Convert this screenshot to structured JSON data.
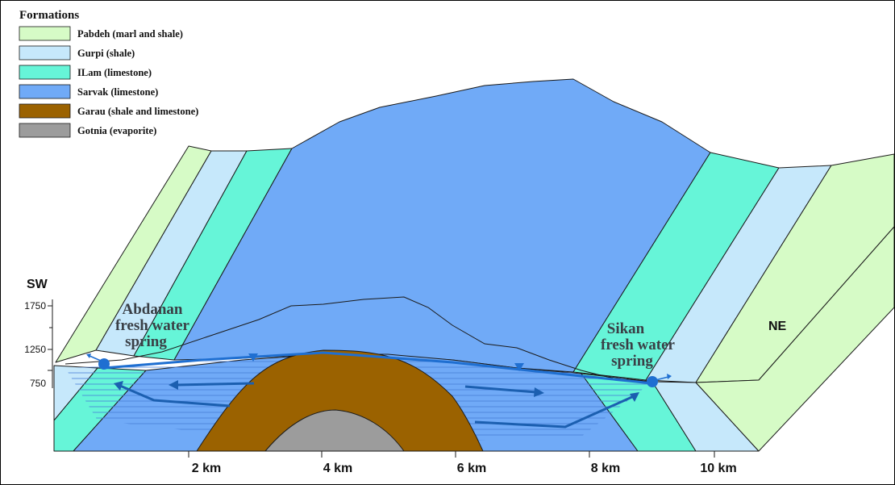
{
  "legend": {
    "title": "Formations",
    "items": [
      {
        "label": "Pabdeh (marl and shale)",
        "color": "#d6fbc6"
      },
      {
        "label": "Gurpi (shale)",
        "color": "#c6e8fb"
      },
      {
        "label": "ILam (limestone)",
        "color": "#66f5d8"
      },
      {
        "label": "Sarvak (limestone)",
        "color": "#70aaf7"
      },
      {
        "label": "Garau (shale and limestone)",
        "color": "#9b6200"
      },
      {
        "label": "Gotnia (evaporite)",
        "color": "#9c9c9c"
      }
    ]
  },
  "directions": {
    "left": "SW",
    "right": "NE"
  },
  "elevation_ticks": [
    "1750",
    "1250",
    "750"
  ],
  "distance_ticks": [
    "2 km",
    "4 km",
    "6 km",
    "8 km",
    "10 km"
  ],
  "springs": {
    "abdanan": [
      "Abdanan",
      "fresh water",
      "spring"
    ],
    "sikan": [
      "Sikan",
      "fresh water",
      "spring"
    ]
  },
  "colors": {
    "water": "#1f6fd1",
    "flow_arrow": "#1b5fb0",
    "hatch": "#4a7fd8"
  }
}
